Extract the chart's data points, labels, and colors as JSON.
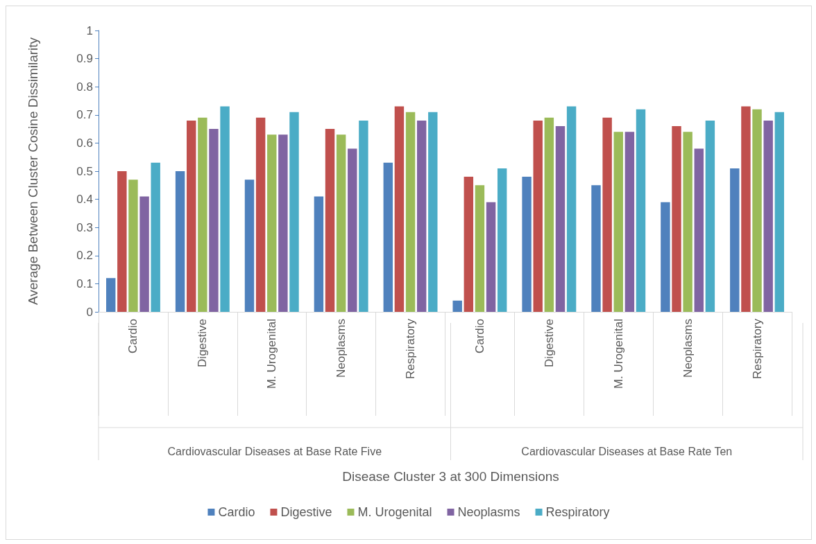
{
  "chart_data": {
    "type": "bar",
    "ylabel": "Average Between Cluster Cosine Dissimilarity",
    "categories": [
      "Cardio",
      "Digestive",
      "M. Urogenital",
      "Neoplasms",
      "Respiratory",
      "Cardio",
      "Digestive",
      "M. Urogenital",
      "Neoplasms",
      "Respiratory"
    ],
    "annotations": [
      "Cardiovascular Diseases at Base Rate Five",
      "Cardiovascular Diseases at Base Rate Ten",
      "Disease Cluster 3 at 300 Dimensions"
    ],
    "series": [
      {
        "name": "Cardio",
        "color": "#4f81bd",
        "values": [
          0.12,
          0.5,
          0.47,
          0.41,
          0.53,
          0.04,
          0.48,
          0.45,
          0.39,
          0.51
        ]
      },
      {
        "name": "Digestive",
        "color": "#c0504d",
        "values": [
          0.5,
          0.68,
          0.69,
          0.65,
          0.73,
          0.48,
          0.68,
          0.69,
          0.66,
          0.73
        ]
      },
      {
        "name": "M. Urogenital",
        "color": "#9bbb59",
        "values": [
          0.47,
          0.69,
          0.63,
          0.63,
          0.71,
          0.45,
          0.69,
          0.64,
          0.64,
          0.72
        ]
      },
      {
        "name": "Neoplasms",
        "color": "#8064a2",
        "values": [
          0.41,
          0.65,
          0.63,
          0.58,
          0.68,
          0.39,
          0.66,
          0.64,
          0.58,
          0.68
        ]
      },
      {
        "name": "Respiratory",
        "color": "#4bacc6",
        "values": [
          0.53,
          0.73,
          0.71,
          0.68,
          0.71,
          0.51,
          0.73,
          0.72,
          0.68,
          0.71
        ]
      }
    ],
    "ylim": [
      0,
      1
    ],
    "yticks": [
      0,
      0.1,
      0.2,
      0.3,
      0.4,
      0.5,
      0.6,
      0.7,
      0.8,
      0.9,
      1
    ],
    "grid": false,
    "legend": "bottom"
  }
}
